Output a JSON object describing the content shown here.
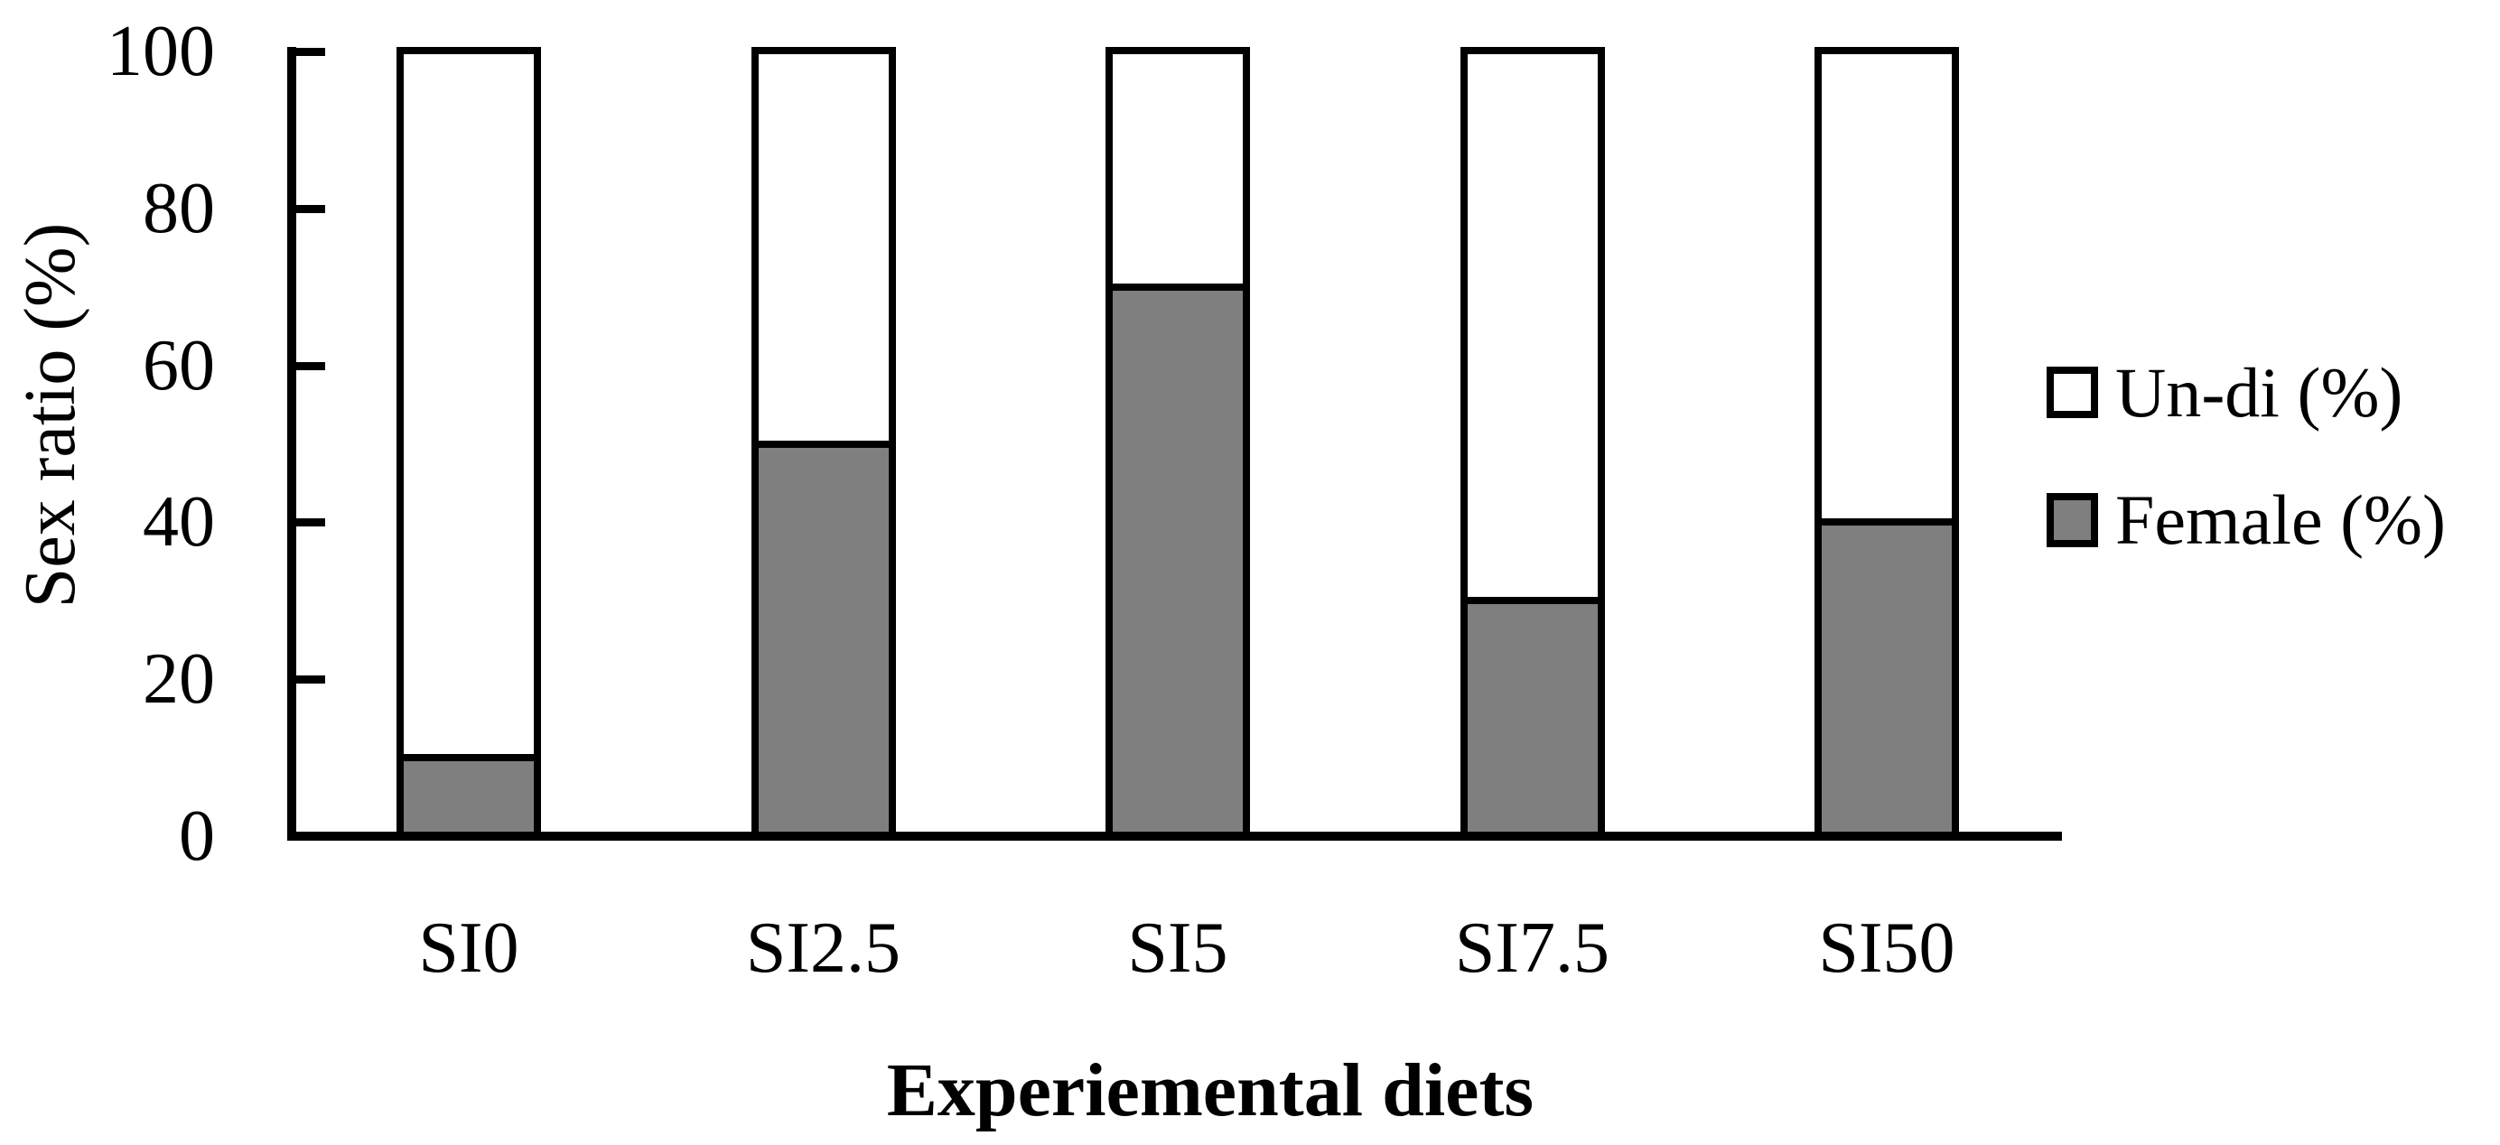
{
  "chart_data": {
    "type": "bar",
    "stacked": true,
    "title": "",
    "xlabel": "Experiemental diets",
    "ylabel": "Sex ratio (%)",
    "categories": [
      "SI0",
      "SI2.5",
      "SI5",
      "SI7.5",
      "SI50"
    ],
    "series": [
      {
        "name": "Female (%)",
        "color": "#7f7f7f",
        "values": [
          10,
          50,
          70,
          30,
          40
        ]
      },
      {
        "name": "Un-di (%)",
        "color": "#ffffff",
        "values": [
          90,
          50,
          30,
          70,
          60
        ]
      }
    ],
    "ylim": [
      0,
      100
    ],
    "yticks": [
      0,
      20,
      40,
      60,
      80,
      100
    ],
    "grid": false,
    "legend_position": "right",
    "legend": [
      {
        "label": "Un-di (%)",
        "swatch_color": "#ffffff"
      },
      {
        "label": "Female (%)",
        "swatch_color": "#7f7f7f"
      }
    ]
  },
  "colors": {
    "axis": "#000000",
    "text": "#000000",
    "background": "#ffffff",
    "bar_fill_gray": "#7f7f7f",
    "bar_fill_white": "#ffffff",
    "bar_border": "#000000"
  }
}
